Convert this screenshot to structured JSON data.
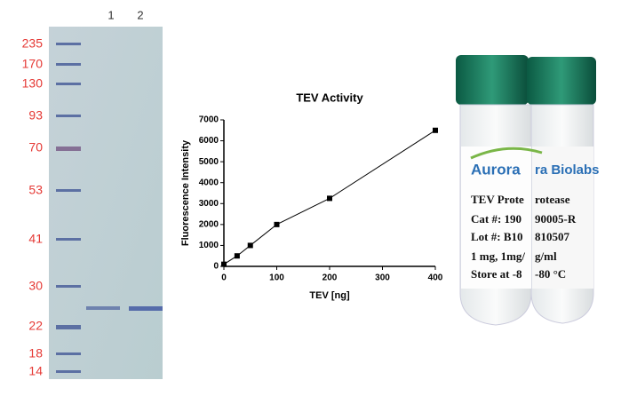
{
  "gel": {
    "lanes": [
      "1",
      "2"
    ],
    "markers": [
      "235",
      "170",
      "130",
      "93",
      "70",
      "53",
      "41",
      "30",
      "22",
      "18",
      "14"
    ]
  },
  "chart_data": {
    "type": "line",
    "title": "TEV Activity",
    "x_label": "TEV [ng]",
    "y_label": "Fluorescence Intensity",
    "x": [
      0,
      25,
      50,
      100,
      200,
      400
    ],
    "series": [
      {
        "color": "#000000",
        "values": [
          100,
          500,
          1000,
          2000,
          3250,
          6500
        ]
      }
    ],
    "xlim": [
      0,
      400
    ],
    "xticks": [
      0,
      100,
      200,
      300,
      400
    ],
    "ylim": [
      0,
      7000
    ],
    "yticks": [
      0,
      1000,
      2000,
      3000,
      4000,
      5000,
      6000,
      7000
    ],
    "markers": true
  },
  "vials": {
    "left": [
      "Aurora",
      "TEV Prote",
      "Cat #: 190",
      "Lot #: B10",
      "1 mg, 1mg/",
      "Store at -8"
    ],
    "right": [
      "ra Biolabs",
      "rotease",
      "90005-R",
      "810507",
      "g/ml",
      "-80 °C"
    ]
  }
}
